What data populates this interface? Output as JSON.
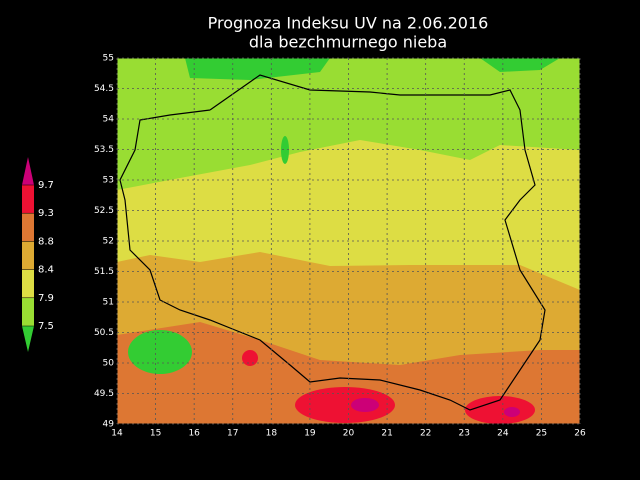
{
  "map": {
    "title": [
      "Prognoza Indeksu UV na  2.06.2016",
      "dla bezchmurnego nieba"
    ],
    "xlim": [
      14,
      26
    ],
    "ylim": [
      49,
      55
    ],
    "xticks": [
      14,
      15,
      16,
      17,
      18,
      19,
      20,
      21,
      22,
      23,
      24,
      25,
      26
    ],
    "yticks": [
      49,
      49.5,
      50,
      50.5,
      51,
      51.5,
      52,
      52.5,
      53,
      53.5,
      54,
      54.5,
      55
    ],
    "legend": {
      "levels": [
        7.5,
        7.9,
        8.4,
        8.8,
        9.3,
        9.7
      ],
      "colors": [
        "#33cc33",
        "#99dd33",
        "#dddd44",
        "#ddaa33",
        "#dd7733",
        "#ee1133",
        "#cc0077"
      ]
    }
  }
}
